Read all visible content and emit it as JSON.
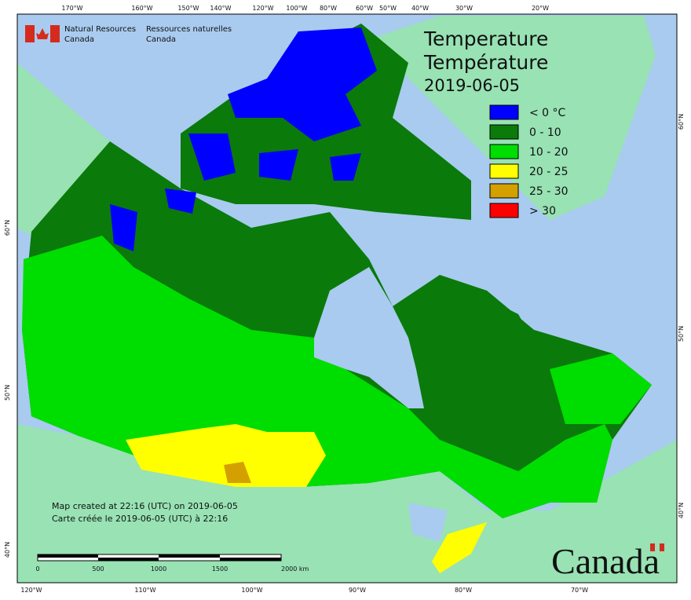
{
  "header": {
    "department_en": [
      "Natural Resources",
      "Canada"
    ],
    "department_fr": [
      "Ressources naturelles",
      "Canada"
    ]
  },
  "title": {
    "en": "Temperature",
    "fr": "Température",
    "date": "2019-06-05"
  },
  "legend": [
    {
      "label": "< 0 °C",
      "color": "#0000ff"
    },
    {
      "label": "0 - 10",
      "color": "#0a7a0a"
    },
    {
      "label": "10 - 20",
      "color": "#00dd00"
    },
    {
      "label": "20 - 25",
      "color": "#ffff00"
    },
    {
      "label": "25 - 30",
      "color": "#d4a000"
    },
    {
      "label": "> 30",
      "color": "#ff0000"
    }
  ],
  "graticule": {
    "top": [
      "170°W",
      "160°W",
      "150°W",
      "140°W",
      "120°W",
      "100°W",
      "80°W",
      "60°W",
      "50°W",
      "40°W",
      "30°W",
      "20°W"
    ],
    "bottom": [
      "120°W",
      "110°W",
      "100°W",
      "90°W",
      "80°W",
      "70°W"
    ],
    "left": [
      "60°N",
      "50°N",
      "40°N"
    ],
    "right": [
      "60°N",
      "50°N",
      "40°N"
    ]
  },
  "footer": {
    "created_en": "Map created at 22:16 (UTC) on 2019-06-05",
    "created_fr": "Carte créée le 2019-06-05 (UTC) à 22:16"
  },
  "scale_bar": [
    "0",
    "500",
    "1000",
    "1500",
    "2000 km"
  ],
  "wordmark": "Canada"
}
